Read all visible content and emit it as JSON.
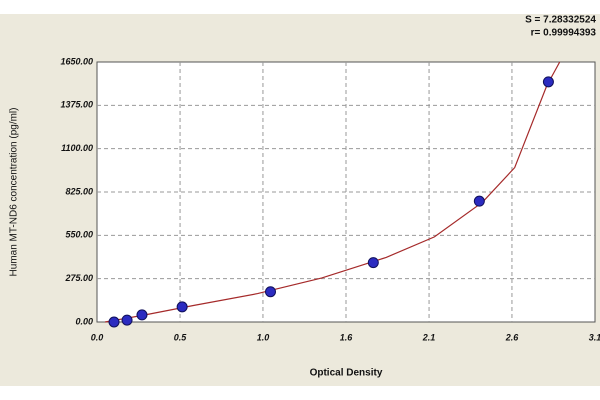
{
  "chart_data": {
    "type": "scatter",
    "annotations": [
      "S = 7.28332524",
      "r= 0.99994393"
    ],
    "x_label": "Optical Density",
    "y_label": "Human  MT-ND6 concentration (pg/ml)",
    "series": [
      {
        "color": "#2b2bc0",
        "x": [
          0.106,
          0.187,
          0.28,
          0.53,
          1.08,
          1.72,
          2.38,
          2.81
        ],
        "values": [
          0,
          12,
          45,
          96,
          192,
          377,
          767,
          1524
        ]
      }
    ],
    "fit": {
      "color": "#a52a2a",
      "x": [
        0.05,
        0.3,
        0.6,
        1.0,
        1.4,
        1.8,
        2.1,
        2.4,
        2.6,
        2.8,
        2.88
      ],
      "values": [
        0,
        45,
        105,
        180,
        280,
        410,
        540,
        760,
        980,
        1500,
        1650
      ]
    },
    "xlim": [
      0,
      3.1
    ],
    "ylim": [
      0,
      1650
    ],
    "xticks": [
      {
        "value": 0,
        "label": "0.0"
      },
      {
        "value": 0.517,
        "label": "0.5"
      },
      {
        "value": 1.033,
        "label": "1.0"
      },
      {
        "value": 1.55,
        "label": "1.6"
      },
      {
        "value": 2.067,
        "label": "2.1"
      },
      {
        "value": 2.583,
        "label": "2.6"
      },
      {
        "value": 3.1,
        "label": "3.1"
      }
    ],
    "yticks": [
      {
        "value": 0,
        "label": "0.00"
      },
      {
        "value": 275,
        "label": "275.00"
      },
      {
        "value": 550,
        "label": "550.00"
      },
      {
        "value": 825,
        "label": "825.00"
      },
      {
        "value": 1100,
        "label": "1100.00"
      },
      {
        "value": 1375,
        "label": "1375.00"
      },
      {
        "value": 1650,
        "label": "1650.00"
      }
    ],
    "grid": true
  }
}
